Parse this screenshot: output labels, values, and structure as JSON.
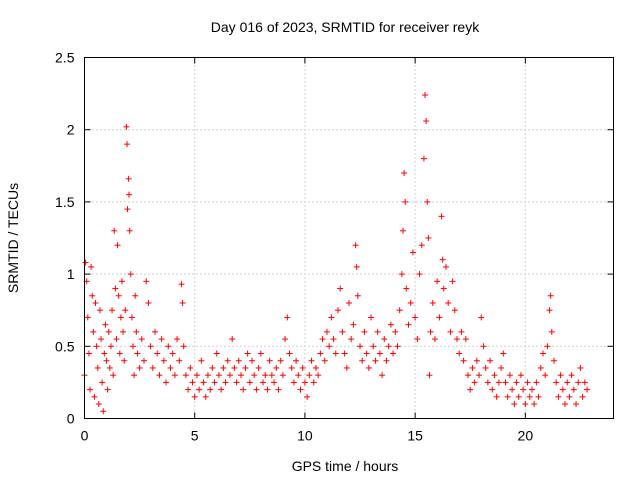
{
  "chart_data": {
    "type": "scatter",
    "title": "Day 016 of 2023, SRMTID for receiver reyk",
    "xlabel": "GPS time / hours",
    "ylabel": "SRMTID / TECUs",
    "xlim": [
      0,
      24
    ],
    "ylim": [
      0,
      2.5
    ],
    "xticks": [
      0,
      5,
      10,
      15,
      20
    ],
    "xtick_labels": [
      "0",
      "5",
      "10",
      "15",
      "20"
    ],
    "yticks": [
      0,
      0.5,
      1,
      1.5,
      2,
      2.5
    ],
    "ytick_labels": [
      "0",
      "0.5",
      "1",
      "1.5",
      "2",
      "2.5"
    ],
    "grid": true,
    "marker": "+",
    "marker_color": "#ff0000",
    "series": [
      {
        "name": "SRMTID",
        "points": [
          [
            0.0,
            0.3
          ],
          [
            0.05,
            1.08
          ],
          [
            0.1,
            0.95
          ],
          [
            0.15,
            0.7
          ],
          [
            0.2,
            0.45
          ],
          [
            0.25,
            0.2
          ],
          [
            0.3,
            1.05
          ],
          [
            0.35,
            0.85
          ],
          [
            0.4,
            0.6
          ],
          [
            0.45,
            0.15
          ],
          [
            0.5,
            0.8
          ],
          [
            0.55,
            0.5
          ],
          [
            0.6,
            0.35
          ],
          [
            0.65,
            0.1
          ],
          [
            0.7,
            0.75
          ],
          [
            0.75,
            0.55
          ],
          [
            0.8,
            0.25
          ],
          [
            0.85,
            0.05
          ],
          [
            0.9,
            0.45
          ],
          [
            0.95,
            0.65
          ],
          [
            1.0,
            0.4
          ],
          [
            1.05,
            0.2
          ],
          [
            1.1,
            0.6
          ],
          [
            1.15,
            0.35
          ],
          [
            1.2,
            0.5
          ],
          [
            1.25,
            0.75
          ],
          [
            1.3,
            0.3
          ],
          [
            1.35,
            1.3
          ],
          [
            1.4,
            0.9
          ],
          [
            1.45,
            0.55
          ],
          [
            1.5,
            1.2
          ],
          [
            1.55,
            0.85
          ],
          [
            1.6,
            0.45
          ],
          [
            1.65,
            0.7
          ],
          [
            1.7,
            0.95
          ],
          [
            1.75,
            0.6
          ],
          [
            1.8,
            0.4
          ],
          [
            1.85,
            0.75
          ],
          [
            1.9,
            2.02
          ],
          [
            1.93,
            1.9
          ],
          [
            1.95,
            1.45
          ],
          [
            2.0,
            1.66
          ],
          [
            2.02,
            1.55
          ],
          [
            2.05,
            1.3
          ],
          [
            2.1,
            1.0
          ],
          [
            2.15,
            0.7
          ],
          [
            2.2,
            0.5
          ],
          [
            2.25,
            0.3
          ],
          [
            2.3,
            0.85
          ],
          [
            2.35,
            0.6
          ],
          [
            2.4,
            0.45
          ],
          [
            2.5,
            0.35
          ],
          [
            2.6,
            0.55
          ],
          [
            2.7,
            0.4
          ],
          [
            2.8,
            0.95
          ],
          [
            2.9,
            0.8
          ],
          [
            3.0,
            0.5
          ],
          [
            3.1,
            0.35
          ],
          [
            3.2,
            0.6
          ],
          [
            3.3,
            0.45
          ],
          [
            3.4,
            0.3
          ],
          [
            3.5,
            0.55
          ],
          [
            3.6,
            0.4
          ],
          [
            3.7,
            0.25
          ],
          [
            3.8,
            0.5
          ],
          [
            3.9,
            0.35
          ],
          [
            4.0,
            0.45
          ],
          [
            4.1,
            0.3
          ],
          [
            4.2,
            0.55
          ],
          [
            4.3,
            0.4
          ],
          [
            4.4,
            0.93
          ],
          [
            4.45,
            0.8
          ],
          [
            4.5,
            0.5
          ],
          [
            4.6,
            0.3
          ],
          [
            4.7,
            0.2
          ],
          [
            4.8,
            0.35
          ],
          [
            4.9,
            0.25
          ],
          [
            5.0,
            0.15
          ],
          [
            5.1,
            0.3
          ],
          [
            5.2,
            0.2
          ],
          [
            5.3,
            0.4
          ],
          [
            5.4,
            0.25
          ],
          [
            5.5,
            0.15
          ],
          [
            5.6,
            0.3
          ],
          [
            5.7,
            0.2
          ],
          [
            5.8,
            0.35
          ],
          [
            5.9,
            0.25
          ],
          [
            6.0,
            0.45
          ],
          [
            6.1,
            0.3
          ],
          [
            6.2,
            0.2
          ],
          [
            6.3,
            0.35
          ],
          [
            6.4,
            0.25
          ],
          [
            6.5,
            0.4
          ],
          [
            6.6,
            0.3
          ],
          [
            6.7,
            0.55
          ],
          [
            6.8,
            0.35
          ],
          [
            6.9,
            0.25
          ],
          [
            7.0,
            0.4
          ],
          [
            7.1,
            0.3
          ],
          [
            7.2,
            0.2
          ],
          [
            7.3,
            0.35
          ],
          [
            7.4,
            0.45
          ],
          [
            7.5,
            0.25
          ],
          [
            7.6,
            0.4
          ],
          [
            7.7,
            0.3
          ],
          [
            7.8,
            0.2
          ],
          [
            7.9,
            0.35
          ],
          [
            8.0,
            0.45
          ],
          [
            8.1,
            0.25
          ],
          [
            8.2,
            0.3
          ],
          [
            8.3,
            0.2
          ],
          [
            8.4,
            0.4
          ],
          [
            8.5,
            0.3
          ],
          [
            8.6,
            0.25
          ],
          [
            8.7,
            0.35
          ],
          [
            8.8,
            0.2
          ],
          [
            8.9,
            0.4
          ],
          [
            9.0,
            0.3
          ],
          [
            9.1,
            0.55
          ],
          [
            9.2,
            0.7
          ],
          [
            9.3,
            0.45
          ],
          [
            9.4,
            0.35
          ],
          [
            9.5,
            0.25
          ],
          [
            9.6,
            0.4
          ],
          [
            9.7,
            0.3
          ],
          [
            9.8,
            0.2
          ],
          [
            9.9,
            0.35
          ],
          [
            10.0,
            0.25
          ],
          [
            10.1,
            0.15
          ],
          [
            10.2,
            0.3
          ],
          [
            10.3,
            0.4
          ],
          [
            10.4,
            0.25
          ],
          [
            10.5,
            0.35
          ],
          [
            10.6,
            0.3
          ],
          [
            10.7,
            0.45
          ],
          [
            10.8,
            0.55
          ],
          [
            10.9,
            0.4
          ],
          [
            11.0,
            0.6
          ],
          [
            11.1,
            0.5
          ],
          [
            11.2,
            0.7
          ],
          [
            11.3,
            0.55
          ],
          [
            11.4,
            0.45
          ],
          [
            11.5,
            0.75
          ],
          [
            11.6,
            0.9
          ],
          [
            11.7,
            0.6
          ],
          [
            11.8,
            0.45
          ],
          [
            11.9,
            0.35
          ],
          [
            12.0,
            0.8
          ],
          [
            12.1,
            0.55
          ],
          [
            12.2,
            0.65
          ],
          [
            12.3,
            1.2
          ],
          [
            12.35,
            1.05
          ],
          [
            12.4,
            0.85
          ],
          [
            12.5,
            0.5
          ],
          [
            12.6,
            0.4
          ],
          [
            12.7,
            0.6
          ],
          [
            12.8,
            0.45
          ],
          [
            12.9,
            0.35
          ],
          [
            13.0,
            0.7
          ],
          [
            13.1,
            0.5
          ],
          [
            13.2,
            0.4
          ],
          [
            13.3,
            0.6
          ],
          [
            13.4,
            0.45
          ],
          [
            13.5,
            0.3
          ],
          [
            13.6,
            0.55
          ],
          [
            13.7,
            0.4
          ],
          [
            13.8,
            0.5
          ],
          [
            13.9,
            0.65
          ],
          [
            14.0,
            0.45
          ],
          [
            14.1,
            0.6
          ],
          [
            14.2,
            0.5
          ],
          [
            14.3,
            0.75
          ],
          [
            14.4,
            1.0
          ],
          [
            14.45,
            1.3
          ],
          [
            14.5,
            1.7
          ],
          [
            14.55,
            1.5
          ],
          [
            14.6,
            0.9
          ],
          [
            14.7,
            0.65
          ],
          [
            14.8,
            0.8
          ],
          [
            14.9,
            1.15
          ],
          [
            15.0,
            0.7
          ],
          [
            15.1,
            0.55
          ],
          [
            15.2,
            1.0
          ],
          [
            15.3,
            1.2
          ],
          [
            15.4,
            1.8
          ],
          [
            15.45,
            2.24
          ],
          [
            15.5,
            2.06
          ],
          [
            15.55,
            1.5
          ],
          [
            15.6,
            1.25
          ],
          [
            15.65,
            0.3
          ],
          [
            15.7,
            0.6
          ],
          [
            15.8,
            0.8
          ],
          [
            15.9,
            0.55
          ],
          [
            16.0,
            0.95
          ],
          [
            16.1,
            0.7
          ],
          [
            16.2,
            1.4
          ],
          [
            16.25,
            1.1
          ],
          [
            16.3,
            0.9
          ],
          [
            16.4,
            1.05
          ],
          [
            16.5,
            0.8
          ],
          [
            16.6,
            0.6
          ],
          [
            16.7,
            0.95
          ],
          [
            16.8,
            0.75
          ],
          [
            16.9,
            0.55
          ],
          [
            17.0,
            0.45
          ],
          [
            17.1,
            0.6
          ],
          [
            17.2,
            0.4
          ],
          [
            17.3,
            0.55
          ],
          [
            17.4,
            0.3
          ],
          [
            17.5,
            0.2
          ],
          [
            17.6,
            0.35
          ],
          [
            17.7,
            0.25
          ],
          [
            17.8,
            0.4
          ],
          [
            17.9,
            0.3
          ],
          [
            18.0,
            0.7
          ],
          [
            18.1,
            0.5
          ],
          [
            18.2,
            0.35
          ],
          [
            18.3,
            0.25
          ],
          [
            18.4,
            0.4
          ],
          [
            18.5,
            0.2
          ],
          [
            18.6,
            0.3
          ],
          [
            18.7,
            0.15
          ],
          [
            18.8,
            0.25
          ],
          [
            18.9,
            0.35
          ],
          [
            19.0,
            0.45
          ],
          [
            19.1,
            0.25
          ],
          [
            19.2,
            0.15
          ],
          [
            19.3,
            0.3
          ],
          [
            19.4,
            0.2
          ],
          [
            19.5,
            0.1
          ],
          [
            19.6,
            0.25
          ],
          [
            19.7,
            0.15
          ],
          [
            19.8,
            0.3
          ],
          [
            19.9,
            0.2
          ],
          [
            20.0,
            0.1
          ],
          [
            20.1,
            0.25
          ],
          [
            20.2,
            0.15
          ],
          [
            20.3,
            0.2
          ],
          [
            20.4,
            0.1
          ],
          [
            20.5,
            0.25
          ],
          [
            20.6,
            0.15
          ],
          [
            20.7,
            0.35
          ],
          [
            20.8,
            0.45
          ],
          [
            20.9,
            0.3
          ],
          [
            21.0,
            0.5
          ],
          [
            21.1,
            0.75
          ],
          [
            21.15,
            0.85
          ],
          [
            21.2,
            0.6
          ],
          [
            21.3,
            0.4
          ],
          [
            21.4,
            0.25
          ],
          [
            21.5,
            0.15
          ],
          [
            21.6,
            0.3
          ],
          [
            21.7,
            0.2
          ],
          [
            21.8,
            0.1
          ],
          [
            21.9,
            0.25
          ],
          [
            22.0,
            0.15
          ],
          [
            22.1,
            0.3
          ],
          [
            22.2,
            0.2
          ],
          [
            22.3,
            0.1
          ],
          [
            22.4,
            0.25
          ],
          [
            22.5,
            0.35
          ],
          [
            22.6,
            0.15
          ],
          [
            22.7,
            0.25
          ],
          [
            22.8,
            0.2
          ]
        ]
      }
    ]
  }
}
